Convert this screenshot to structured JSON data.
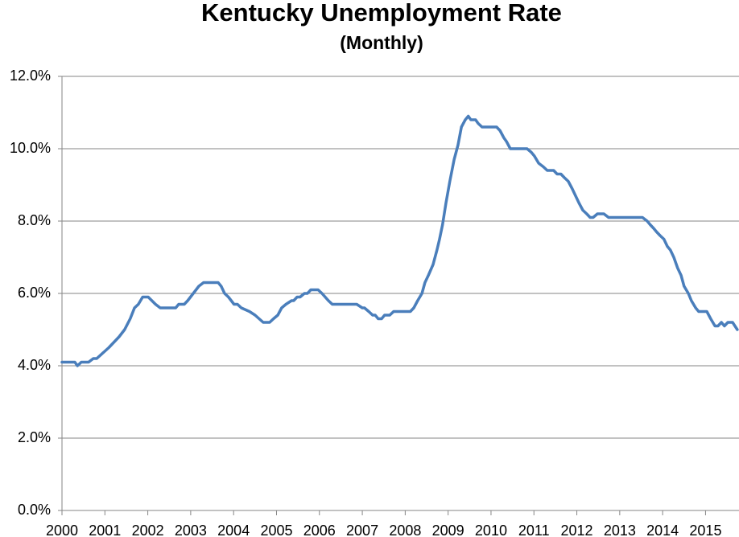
{
  "chart_data": {
    "type": "line",
    "title": "Kentucky Unemployment Rate",
    "subtitle": "(Monthly)",
    "color": "#4a7ebb",
    "grid": true,
    "x": [
      2000,
      2000.3,
      2000.36,
      2000.45,
      2000.62,
      2000.73,
      2000.81,
      2001.09,
      2001.33,
      2001.46,
      2001.59,
      2001.69,
      2001.78,
      2001.88,
      2002.01,
      2002.18,
      2002.29,
      2002.65,
      2002.72,
      2002.85,
      2002.93,
      2003.06,
      2003.19,
      2003.3,
      2003.64,
      2003.71,
      2003.79,
      2003.88,
      2004.01,
      2004.09,
      2004.18,
      2004.37,
      2004.5,
      2004.69,
      2004.84,
      2004.93,
      2005.03,
      2005.12,
      2005.22,
      2005.35,
      2005.4,
      2005.48,
      2005.55,
      2005.65,
      2005.72,
      2005.8,
      2005.97,
      2006.06,
      2006.21,
      2006.3,
      2006.87,
      2007,
      2007.05,
      2007.15,
      2007.24,
      2007.3,
      2007.37,
      2007.45,
      2007.52,
      2007.64,
      2007.73,
      2008.12,
      2008.2,
      2008.29,
      2008.39,
      2008.46,
      2008.54,
      2008.65,
      2008.74,
      2008.8,
      2008.87,
      2008.95,
      2009.04,
      2009.14,
      2009.23,
      2009.31,
      2009.4,
      2009.47,
      2009.53,
      2009.64,
      2009.7,
      2009.79,
      2010.13,
      2010.21,
      2010.3,
      2010.36,
      2010.45,
      2010.84,
      2010.94,
      2011.01,
      2011.11,
      2011.22,
      2011.31,
      2011.46,
      2011.54,
      2011.63,
      2011.71,
      2011.8,
      2011.89,
      2011.97,
      2012.05,
      2012.14,
      2012.23,
      2012.31,
      2012.38,
      2012.48,
      2012.63,
      2012.74,
      2013.53,
      2013.64,
      2013.71,
      2013.79,
      2013.86,
      2013.94,
      2014.03,
      2014.11,
      2014.18,
      2014.26,
      2014.35,
      2014.43,
      2014.5,
      2014.6,
      2014.67,
      2014.77,
      2014.84,
      2015.03,
      2015.12,
      2015.22,
      2015.29,
      2015.37,
      2015.44,
      2015.52,
      2015.63,
      2015.74
    ],
    "values": [
      4.1,
      4.1,
      4.0,
      4.1,
      4.1,
      4.2,
      4.2,
      4.5,
      4.8,
      5.0,
      5.3,
      5.6,
      5.7,
      5.9,
      5.9,
      5.7,
      5.6,
      5.6,
      5.7,
      5.7,
      5.8,
      6.0,
      6.2,
      6.3,
      6.3,
      6.2,
      6.0,
      5.9,
      5.7,
      5.7,
      5.6,
      5.5,
      5.4,
      5.2,
      5.2,
      5.3,
      5.4,
      5.6,
      5.7,
      5.8,
      5.8,
      5.9,
      5.9,
      6.0,
      6.0,
      6.1,
      6.1,
      6.0,
      5.8,
      5.7,
      5.7,
      5.6,
      5.6,
      5.5,
      5.4,
      5.4,
      5.3,
      5.3,
      5.4,
      5.4,
      5.5,
      5.5,
      5.6,
      5.8,
      6.0,
      6.3,
      6.5,
      6.8,
      7.2,
      7.5,
      7.9,
      8.5,
      9.1,
      9.7,
      10.1,
      10.6,
      10.8,
      10.9,
      10.8,
      10.8,
      10.7,
      10.6,
      10.6,
      10.5,
      10.3,
      10.2,
      10.0,
      10.0,
      9.9,
      9.8,
      9.6,
      9.5,
      9.4,
      9.4,
      9.3,
      9.3,
      9.2,
      9.1,
      8.9,
      8.7,
      8.5,
      8.3,
      8.2,
      8.1,
      8.1,
      8.2,
      8.2,
      8.1,
      8.1,
      8.0,
      7.9,
      7.8,
      7.7,
      7.6,
      7.5,
      7.3,
      7.2,
      7.0,
      6.7,
      6.5,
      6.2,
      6.0,
      5.8,
      5.6,
      5.5,
      5.5,
      5.3,
      5.1,
      5.1,
      5.2,
      5.1,
      5.2,
      5.2,
      5.0
    ],
    "xlim": [
      2000,
      2015.78
    ],
    "xticks": [
      2000,
      2001,
      2002,
      2003,
      2004,
      2005,
      2006,
      2007,
      2008,
      2009,
      2010,
      2011,
      2012,
      2013,
      2014,
      2015
    ],
    "ylim": [
      0,
      12
    ],
    "yticks": [
      {
        "value": 0,
        "label": "0.0%"
      },
      {
        "value": 2,
        "label": "2.0%"
      },
      {
        "value": 4,
        "label": "4.0%"
      },
      {
        "value": 6,
        "label": "6.0%"
      },
      {
        "value": 8,
        "label": "8.0%"
      },
      {
        "value": 10,
        "label": "10.0%"
      },
      {
        "value": 12,
        "label": "12.0%"
      }
    ]
  }
}
